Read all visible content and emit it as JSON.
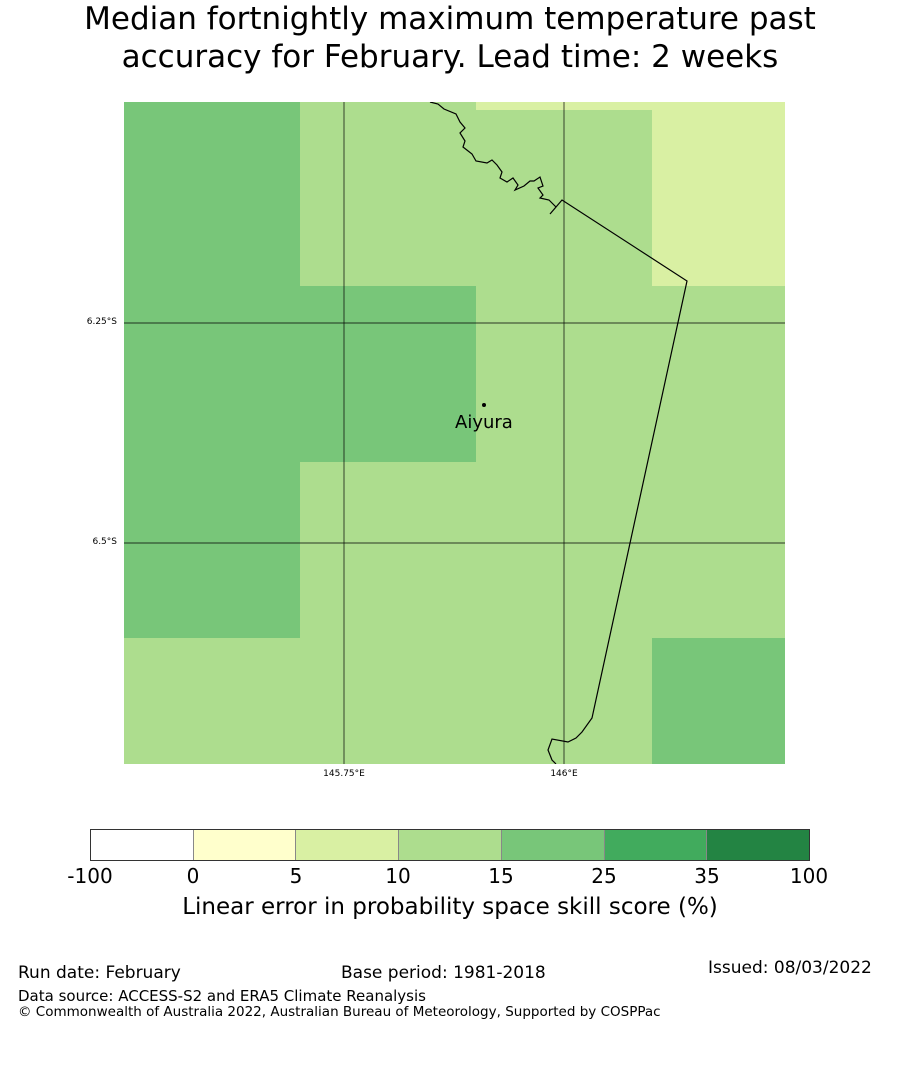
{
  "title": {
    "line1": "Median fortnightly maximum temperature past",
    "line2": "accuracy for February. Lead time: 2 weeks"
  },
  "map": {
    "lat_ticks": [
      "6.25°S",
      "6.5°S"
    ],
    "lon_ticks": [
      "145.75°E",
      "146°E"
    ],
    "place": {
      "name": "Aiyura"
    },
    "skill_grid_bins": [
      [
        "15-25",
        "10-15",
        "10-15",
        "5-10"
      ],
      [
        "15-25",
        "15-25",
        "10-15",
        "10-15"
      ],
      [
        "15-25",
        "10-15",
        "10-15",
        "10-15"
      ],
      [
        "10-15",
        "10-15",
        "10-15",
        "15-25"
      ]
    ]
  },
  "colorbar": {
    "ticks": [
      "-100",
      "0",
      "5",
      "10",
      "15",
      "25",
      "35",
      "100"
    ],
    "colors": [
      "#ffffff",
      "#ffffcc",
      "#d9f0a3",
      "#addd8e",
      "#78c679",
      "#41ab5d",
      "#238443"
    ],
    "label": "Linear error in probability space skill score (%)"
  },
  "footer": {
    "run_date": "Run date: February",
    "base_period": "Base period: 1981-2018",
    "issued": "Issued: 08/03/2022",
    "data_source": "Data source: ACCESS-S2 and ERA5 Climate Reanalysis",
    "copyright": "© Commonwealth of Australia 2022, Australian Bureau of Meteorology, Supported by COSPPac"
  }
}
